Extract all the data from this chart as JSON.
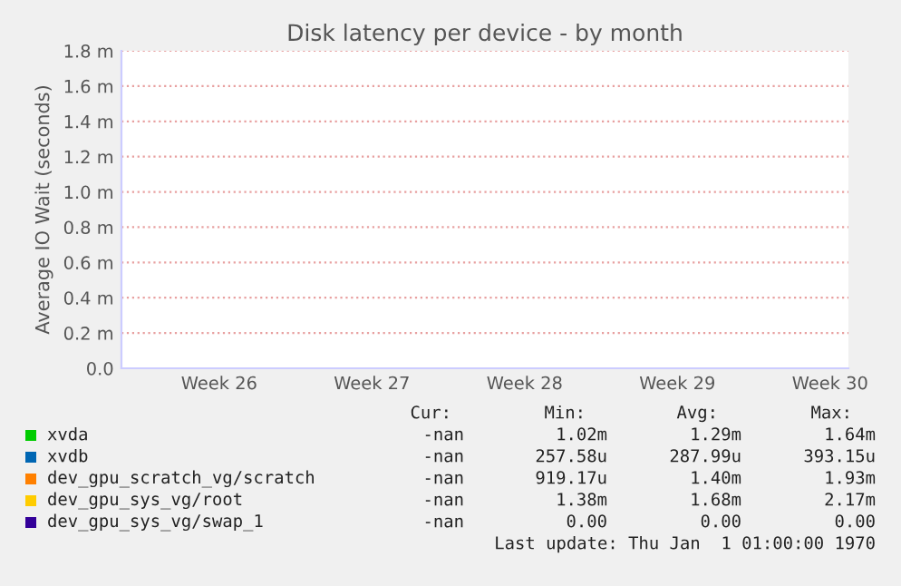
{
  "chart_data": {
    "type": "line",
    "title": "Disk latency per device - by month",
    "ylabel": "Average IO Wait (seconds)",
    "categories": [
      "Week 26",
      "Week 27",
      "Week 28",
      "Week 29",
      "Week 30"
    ],
    "ylim": [
      0,
      1.8
    ],
    "yticks": [
      {
        "value": 0,
        "label": "0.0"
      },
      {
        "value": 0.2,
        "label": "0.2 m"
      },
      {
        "value": 0.4,
        "label": "0.4 m"
      },
      {
        "value": 0.6,
        "label": "0.6 m"
      },
      {
        "value": 0.8,
        "label": "0.8 m"
      },
      {
        "value": 1.0,
        "label": "1.0 m"
      },
      {
        "value": 1.2,
        "label": "1.2 m"
      },
      {
        "value": 1.4,
        "label": "1.4 m"
      },
      {
        "value": 1.6,
        "label": "1.6 m"
      },
      {
        "value": 1.8,
        "label": "1.8 m"
      }
    ],
    "grid": "y",
    "legend": "bottom",
    "series": [
      {
        "name": "xvda",
        "color": "#00cc00",
        "values": [
          null,
          null,
          null,
          null,
          null
        ]
      },
      {
        "name": "xvdb",
        "color": "#0066b3",
        "values": [
          null,
          null,
          null,
          null,
          null
        ]
      },
      {
        "name": "dev_gpu_scratch_vg/scratch",
        "color": "#ff8000",
        "values": [
          null,
          null,
          null,
          null,
          null
        ]
      },
      {
        "name": "dev_gpu_sys_vg/root",
        "color": "#ffcc00",
        "values": [
          null,
          null,
          null,
          null,
          null
        ]
      },
      {
        "name": "dev_gpu_sys_vg/swap_1",
        "color": "#330099",
        "values": [
          null,
          null,
          null,
          null,
          null
        ]
      }
    ],
    "annotations": [
      "Cur: Min: Avg: Max:",
      "-nan 1.02m 1.29m 1.64m",
      "-nan 257.58u 287.99u 393.15u",
      "-nan 919.17u 1.40m 1.93m",
      "-nan 1.38m 1.68m 2.17m",
      "-nan 0.00 0.00 0.00",
      "Last update: Thu Jan  1 01:00:00 1970"
    ]
  }
}
